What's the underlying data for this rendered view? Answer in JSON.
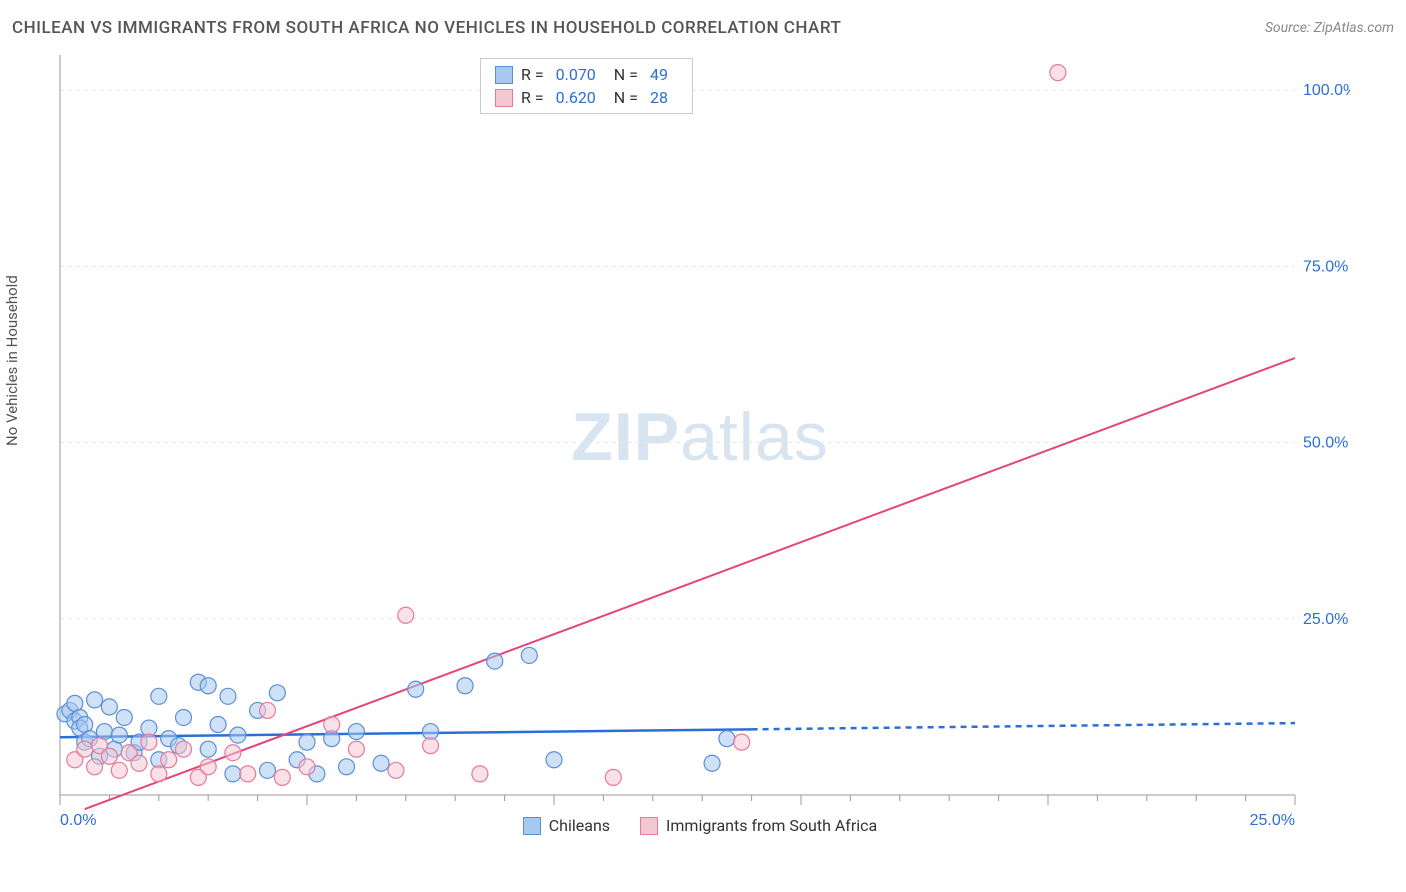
{
  "header": {
    "title": "CHILEAN VS IMMIGRANTS FROM SOUTH AFRICA NO VEHICLES IN HOUSEHOLD CORRELATION CHART",
    "source_prefix": "Source: ",
    "source_name": "ZipAtlas.com"
  },
  "axes": {
    "y_label": "No Vehicles in Household",
    "x_min": 0,
    "x_max": 25,
    "y_min": 0,
    "y_max": 105,
    "x_ticks": [
      0,
      5,
      10,
      15,
      20,
      25
    ],
    "x_tick_labels": [
      "0.0%",
      "",
      "",
      "",
      "",
      "25.0%"
    ],
    "y_ticks": [
      25,
      50,
      75,
      100
    ],
    "y_tick_labels": [
      "25.0%",
      "50.0%",
      "75.0%",
      "100.0%"
    ],
    "minor_x_ticks": [
      1,
      2,
      3,
      4,
      6,
      7,
      8,
      9,
      11,
      12,
      13,
      14,
      16,
      17,
      18,
      19,
      21,
      22,
      23,
      24
    ],
    "grid_color": "#e8e8e8",
    "axis_color": "#999",
    "tick_label_color": "#2a6fd6"
  },
  "watermark": {
    "bold": "ZIP",
    "light": "atlas"
  },
  "series": [
    {
      "id": "chileans",
      "label": "Chileans",
      "color_fill": "#a8c8f0",
      "color_stroke": "#5b8fd6",
      "marker_radius": 8,
      "R": "0.070",
      "N": "49",
      "trend": {
        "x1": 0,
        "y1": 8.2,
        "x2": 25,
        "y2": 10.2,
        "solid_until_x": 14,
        "color": "#2a6fd6",
        "width": 2.5
      },
      "points": [
        [
          0.1,
          11.5
        ],
        [
          0.2,
          12
        ],
        [
          0.3,
          10.5
        ],
        [
          0.3,
          13
        ],
        [
          0.4,
          11
        ],
        [
          0.4,
          9.5
        ],
        [
          0.5,
          10
        ],
        [
          0.5,
          7.5
        ],
        [
          0.6,
          8
        ],
        [
          0.7,
          13.5
        ],
        [
          0.8,
          5.5
        ],
        [
          0.9,
          9
        ],
        [
          1.0,
          12.5
        ],
        [
          1.1,
          6.5
        ],
        [
          1.2,
          8.5
        ],
        [
          1.3,
          11
        ],
        [
          1.5,
          6
        ],
        [
          1.6,
          7.5
        ],
        [
          1.8,
          9.5
        ],
        [
          2.0,
          14
        ],
        [
          2.0,
          5
        ],
        [
          2.2,
          8
        ],
        [
          2.4,
          7
        ],
        [
          2.5,
          11
        ],
        [
          2.8,
          16
        ],
        [
          3.0,
          6.5
        ],
        [
          3.0,
          15.5
        ],
        [
          3.2,
          10
        ],
        [
          3.4,
          14
        ],
        [
          3.5,
          3
        ],
        [
          3.6,
          8.5
        ],
        [
          4.0,
          12
        ],
        [
          4.2,
          3.5
        ],
        [
          4.4,
          14.5
        ],
        [
          4.8,
          5
        ],
        [
          5.0,
          7.5
        ],
        [
          5.2,
          3
        ],
        [
          5.5,
          8
        ],
        [
          5.8,
          4
        ],
        [
          6.0,
          9
        ],
        [
          6.5,
          4.5
        ],
        [
          7.2,
          15
        ],
        [
          7.5,
          9
        ],
        [
          8.2,
          15.5
        ],
        [
          8.8,
          19
        ],
        [
          9.5,
          19.8
        ],
        [
          10,
          5
        ],
        [
          13.2,
          4.5
        ],
        [
          13.5,
          8
        ]
      ]
    },
    {
      "id": "south_africa",
      "label": "Immigrants from South Africa",
      "color_fill": "#f5c6d3",
      "color_stroke": "#e67a9b",
      "marker_radius": 8,
      "R": "0.620",
      "N": "28",
      "trend": {
        "x1": 0.5,
        "y1": -2,
        "x2": 25,
        "y2": 62,
        "solid_until_x": 25,
        "color": "#e6447a",
        "width": 2
      },
      "points": [
        [
          0.3,
          5
        ],
        [
          0.5,
          6.5
        ],
        [
          0.7,
          4
        ],
        [
          0.8,
          7
        ],
        [
          1.0,
          5.5
        ],
        [
          1.2,
          3.5
        ],
        [
          1.4,
          6
        ],
        [
          1.6,
          4.5
        ],
        [
          1.8,
          7.5
        ],
        [
          2.0,
          3
        ],
        [
          2.2,
          5
        ],
        [
          2.5,
          6.5
        ],
        [
          2.8,
          2.5
        ],
        [
          3.0,
          4
        ],
        [
          3.5,
          6
        ],
        [
          3.8,
          3
        ],
        [
          4.2,
          12
        ],
        [
          4.5,
          2.5
        ],
        [
          5.0,
          4
        ],
        [
          5.5,
          10
        ],
        [
          6.0,
          6.5
        ],
        [
          6.8,
          3.5
        ],
        [
          7.0,
          25.5
        ],
        [
          7.5,
          7
        ],
        [
          8.5,
          3
        ],
        [
          11.2,
          2.5
        ],
        [
          13.8,
          7.5
        ],
        [
          20.2,
          102.5
        ]
      ]
    }
  ],
  "legend_top": {
    "R_label": "R =",
    "N_label": "N ="
  }
}
